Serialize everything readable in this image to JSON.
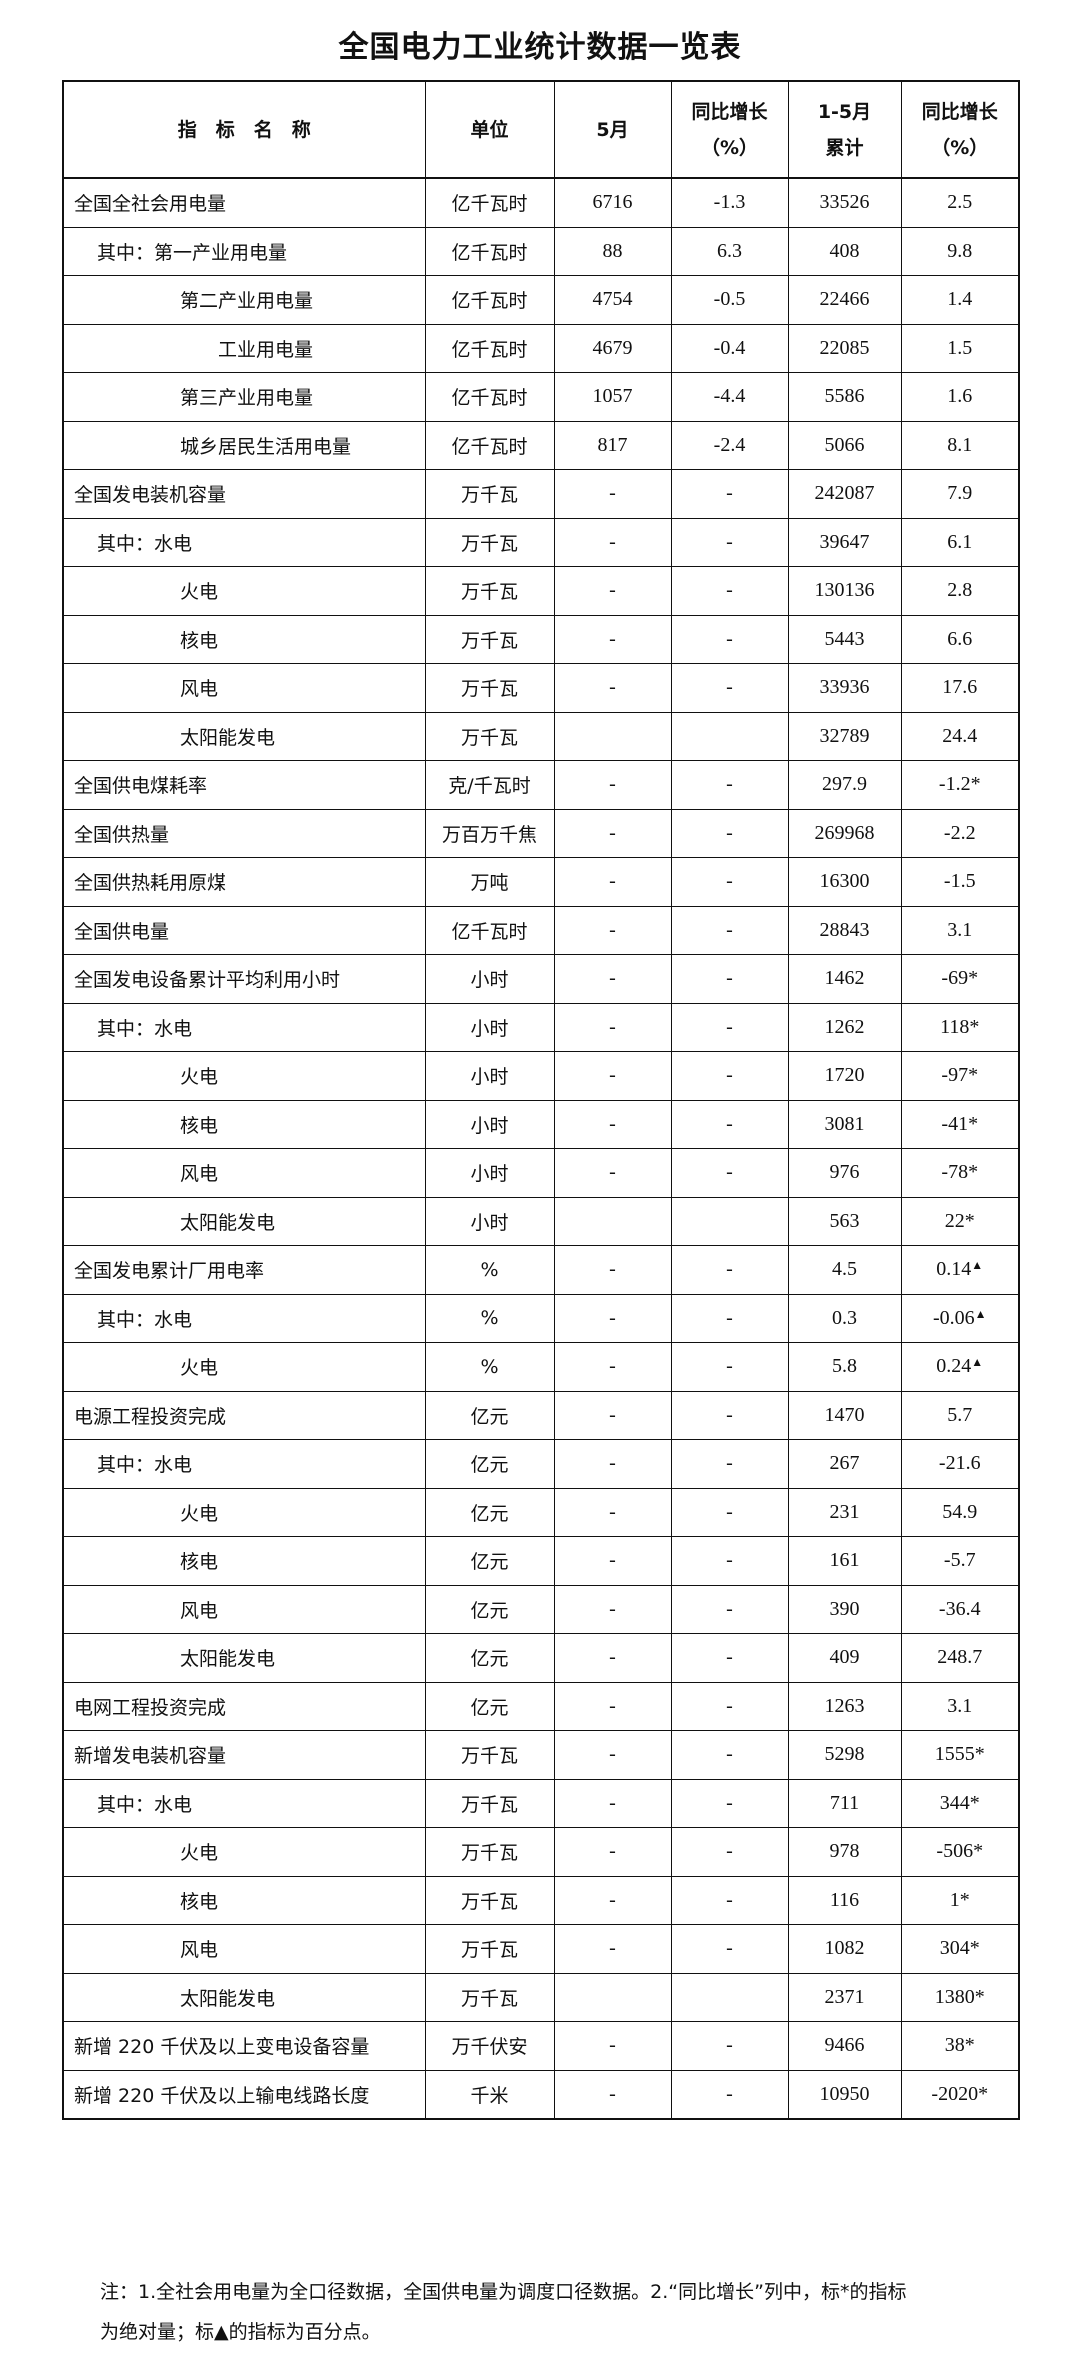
{
  "title": "全国电力工业统计数据一览表",
  "headers": {
    "name": "指　标　名　称",
    "unit": "单位",
    "month": "5月",
    "month_yoy": "同比增长\n（%）",
    "cum": "1-5月\n累计",
    "cum_yoy": "同比增长\n（%）"
  },
  "rows": [
    {
      "name": "全国全社会用电量",
      "level": 0,
      "unit": "亿千瓦时",
      "month": "6716",
      "month_yoy": "-1.3",
      "cum": "33526",
      "cum_yoy": "2.5"
    },
    {
      "name": "其中：第一产业用电量",
      "level": 1,
      "unit": "亿千瓦时",
      "month": "88",
      "month_yoy": "6.3",
      "cum": "408",
      "cum_yoy": "9.8"
    },
    {
      "name": "第二产业用电量",
      "level": 2,
      "unit": "亿千瓦时",
      "month": "4754",
      "month_yoy": "-0.5",
      "cum": "22466",
      "cum_yoy": "1.4"
    },
    {
      "name": "工业用电量",
      "level": 3,
      "unit": "亿千瓦时",
      "month": "4679",
      "month_yoy": "-0.4",
      "cum": "22085",
      "cum_yoy": "1.5"
    },
    {
      "name": "第三产业用电量",
      "level": 2,
      "unit": "亿千瓦时",
      "month": "1057",
      "month_yoy": "-4.4",
      "cum": "5586",
      "cum_yoy": "1.6"
    },
    {
      "name": "城乡居民生活用电量",
      "level": 2,
      "unit": "亿千瓦时",
      "month": "817",
      "month_yoy": "-2.4",
      "cum": "5066",
      "cum_yoy": "8.1"
    },
    {
      "name": "全国发电装机容量",
      "level": 0,
      "unit": "万千瓦",
      "month": "-",
      "month_yoy": "-",
      "cum": "242087",
      "cum_yoy": "7.9"
    },
    {
      "name": "其中：水电",
      "level": 1,
      "unit": "万千瓦",
      "month": "-",
      "month_yoy": "-",
      "cum": "39647",
      "cum_yoy": "6.1"
    },
    {
      "name": "火电",
      "level": 2,
      "unit": "万千瓦",
      "month": "-",
      "month_yoy": "-",
      "cum": "130136",
      "cum_yoy": "2.8"
    },
    {
      "name": "核电",
      "level": 2,
      "unit": "万千瓦",
      "month": "-",
      "month_yoy": "-",
      "cum": "5443",
      "cum_yoy": "6.6"
    },
    {
      "name": "风电",
      "level": 2,
      "unit": "万千瓦",
      "month": "-",
      "month_yoy": "-",
      "cum": "33936",
      "cum_yoy": "17.6"
    },
    {
      "name": "太阳能发电",
      "level": 2,
      "unit": "万千瓦",
      "month": "",
      "month_yoy": "",
      "cum": "32789",
      "cum_yoy": "24.4"
    },
    {
      "name": "全国供电煤耗率",
      "level": 0,
      "unit": "克/千瓦时",
      "month": "-",
      "month_yoy": "-",
      "cum": "297.9",
      "cum_yoy": "-1.2*"
    },
    {
      "name": "全国供热量",
      "level": 0,
      "unit": "万百万千焦",
      "month": "-",
      "month_yoy": "-",
      "cum": "269968",
      "cum_yoy": "-2.2"
    },
    {
      "name": "全国供热耗用原煤",
      "level": 0,
      "unit": "万吨",
      "month": "-",
      "month_yoy": "-",
      "cum": "16300",
      "cum_yoy": "-1.5"
    },
    {
      "name": "全国供电量",
      "level": 0,
      "unit": "亿千瓦时",
      "month": "-",
      "month_yoy": "-",
      "cum": "28843",
      "cum_yoy": "3.1"
    },
    {
      "name": "全国发电设备累计平均利用小时",
      "level": 0,
      "unit": "小时",
      "month": "-",
      "month_yoy": "-",
      "cum": "1462",
      "cum_yoy": "-69*"
    },
    {
      "name": "其中：水电",
      "level": 1,
      "unit": "小时",
      "month": "-",
      "month_yoy": "-",
      "cum": "1262",
      "cum_yoy": "118*"
    },
    {
      "name": "火电",
      "level": 2,
      "unit": "小时",
      "month": "-",
      "month_yoy": "-",
      "cum": "1720",
      "cum_yoy": "-97*"
    },
    {
      "name": "核电",
      "level": 2,
      "unit": "小时",
      "month": "-",
      "month_yoy": "-",
      "cum": "3081",
      "cum_yoy": "-41*"
    },
    {
      "name": "风电",
      "level": 2,
      "unit": "小时",
      "month": "-",
      "month_yoy": "-",
      "cum": "976",
      "cum_yoy": "-78*"
    },
    {
      "name": "太阳能发电",
      "level": 2,
      "unit": "小时",
      "month": "",
      "month_yoy": "",
      "cum": "563",
      "cum_yoy": "22*"
    },
    {
      "name": "全国发电累计厂用电率",
      "level": 0,
      "unit": "%",
      "month": "-",
      "month_yoy": "-",
      "cum": "4.5",
      "cum_yoy": "0.14",
      "mark": "▲"
    },
    {
      "name": "其中：水电",
      "level": 1,
      "unit": "%",
      "month": "-",
      "month_yoy": "-",
      "cum": "0.3",
      "cum_yoy": "-0.06",
      "mark": "▲"
    },
    {
      "name": "火电",
      "level": 2,
      "unit": "%",
      "month": "-",
      "month_yoy": "-",
      "cum": "5.8",
      "cum_yoy": "0.24",
      "mark": "▲"
    },
    {
      "name": "电源工程投资完成",
      "level": 0,
      "unit": "亿元",
      "month": "-",
      "month_yoy": "-",
      "cum": "1470",
      "cum_yoy": "5.7"
    },
    {
      "name": "其中：水电",
      "level": 1,
      "unit": "亿元",
      "month": "-",
      "month_yoy": "-",
      "cum": "267",
      "cum_yoy": "-21.6"
    },
    {
      "name": "火电",
      "level": 2,
      "unit": "亿元",
      "month": "-",
      "month_yoy": "-",
      "cum": "231",
      "cum_yoy": "54.9"
    },
    {
      "name": "核电",
      "level": 2,
      "unit": "亿元",
      "month": "-",
      "month_yoy": "-",
      "cum": "161",
      "cum_yoy": "-5.7"
    },
    {
      "name": "风电",
      "level": 2,
      "unit": "亿元",
      "month": "-",
      "month_yoy": "-",
      "cum": "390",
      "cum_yoy": "-36.4"
    },
    {
      "name": "太阳能发电",
      "level": 2,
      "unit": "亿元",
      "month": "-",
      "month_yoy": "-",
      "cum": "409",
      "cum_yoy": "248.7"
    },
    {
      "name": "电网工程投资完成",
      "level": 0,
      "unit": "亿元",
      "month": "-",
      "month_yoy": "-",
      "cum": "1263",
      "cum_yoy": "3.1"
    },
    {
      "name": "新增发电装机容量",
      "level": 0,
      "unit": "万千瓦",
      "month": "-",
      "month_yoy": "-",
      "cum": "5298",
      "cum_yoy": "1555*"
    },
    {
      "name": "其中：水电",
      "level": 1,
      "unit": "万千瓦",
      "month": "-",
      "month_yoy": "-",
      "cum": "711",
      "cum_yoy": "344*"
    },
    {
      "name": "火电",
      "level": 2,
      "unit": "万千瓦",
      "month": "-",
      "month_yoy": "-",
      "cum": "978",
      "cum_yoy": "-506*"
    },
    {
      "name": "核电",
      "level": 2,
      "unit": "万千瓦",
      "month": "-",
      "month_yoy": "-",
      "cum": "116",
      "cum_yoy": "1*"
    },
    {
      "name": "风电",
      "level": 2,
      "unit": "万千瓦",
      "month": "-",
      "month_yoy": "-",
      "cum": "1082",
      "cum_yoy": "304*"
    },
    {
      "name": "太阳能发电",
      "level": 2,
      "unit": "万千瓦",
      "month": "",
      "month_yoy": "",
      "cum": "2371",
      "cum_yoy": "1380*"
    },
    {
      "name": "新增 220 千伏及以上变电设备容量",
      "level": 0,
      "unit": "万千伏安",
      "month": "-",
      "month_yoy": "-",
      "cum": "9466",
      "cum_yoy": "38*"
    },
    {
      "name": "新增 220 千伏及以上输电线路长度",
      "level": 0,
      "unit": "千米",
      "month": "-",
      "month_yoy": "-",
      "cum": "10950",
      "cum_yoy": "-2020*"
    }
  ],
  "note": {
    "line1": "注：1.全社会用电量为全口径数据，全国供电量为调度口径数据。2.“同比增长”列中，标*的指标",
    "line2": "为绝对量；标▲的指标为百分点。"
  }
}
